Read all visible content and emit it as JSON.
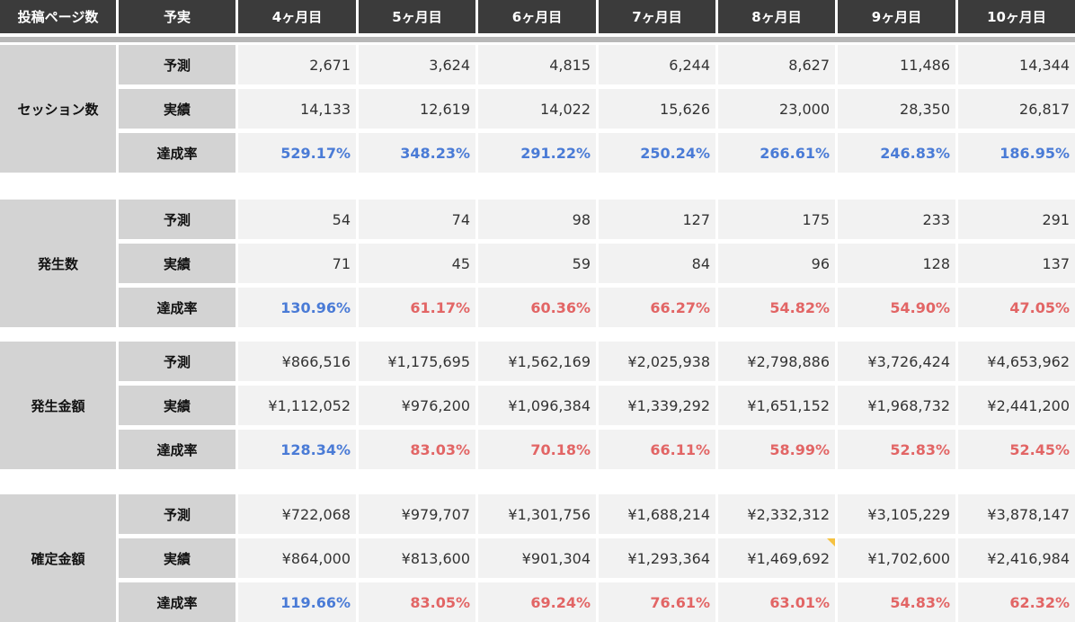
{
  "headers": [
    "投稿ページ数",
    "予実",
    "4ヶ月目",
    "5ヶ月目",
    "6ヶ月目",
    "7ヶ月目",
    "8ヶ月目",
    "9ヶ月目",
    "10ヶ月目"
  ],
  "groups": [
    {
      "label": "セッション数",
      "rows": [
        {
          "label": "予測",
          "values": [
            "2,671",
            "3,624",
            "4,815",
            "6,244",
            "8,627",
            "11,486",
            "14,344"
          ]
        },
        {
          "label": "実績",
          "values": [
            "14,133",
            "12,619",
            "14,022",
            "15,626",
            "23,000",
            "28,350",
            "26,817"
          ]
        },
        {
          "label": "達成率",
          "values": [
            "529.17%",
            "348.23%",
            "291.22%",
            "250.24%",
            "266.61%",
            "246.83%",
            "186.95%"
          ],
          "status": [
            "good",
            "good",
            "good",
            "good",
            "good",
            "good",
            "good"
          ]
        }
      ]
    },
    {
      "label": "発生数",
      "rows": [
        {
          "label": "予測",
          "values": [
            "54",
            "74",
            "98",
            "127",
            "175",
            "233",
            "291"
          ]
        },
        {
          "label": "実績",
          "values": [
            "71",
            "45",
            "59",
            "84",
            "96",
            "128",
            "137"
          ]
        },
        {
          "label": "達成率",
          "values": [
            "130.96%",
            "61.17%",
            "60.36%",
            "66.27%",
            "54.82%",
            "54.90%",
            "47.05%"
          ],
          "status": [
            "good",
            "bad",
            "bad",
            "bad",
            "bad",
            "bad",
            "bad"
          ]
        }
      ]
    },
    {
      "label": "発生金額",
      "rows": [
        {
          "label": "予測",
          "values": [
            "¥866,516",
            "¥1,175,695",
            "¥1,562,169",
            "¥2,025,938",
            "¥2,798,886",
            "¥3,726,424",
            "¥4,653,962"
          ]
        },
        {
          "label": "実績",
          "values": [
            "¥1,112,052",
            "¥976,200",
            "¥1,096,384",
            "¥1,339,292",
            "¥1,651,152",
            "¥1,968,732",
            "¥2,441,200"
          ]
        },
        {
          "label": "達成率",
          "values": [
            "128.34%",
            "83.03%",
            "70.18%",
            "66.11%",
            "58.99%",
            "52.83%",
            "52.45%"
          ],
          "status": [
            "good",
            "bad",
            "bad",
            "bad",
            "bad",
            "bad",
            "bad"
          ]
        }
      ]
    },
    {
      "label": "確定金額",
      "rows": [
        {
          "label": "予測",
          "values": [
            "¥722,068",
            "¥979,707",
            "¥1,301,756",
            "¥1,688,214",
            "¥2,332,312",
            "¥3,105,229",
            "¥3,878,147"
          ]
        },
        {
          "label": "実績",
          "values": [
            "¥864,000",
            "¥813,600",
            "¥901,304",
            "¥1,293,364",
            "¥1,469,692",
            "¥1,702,600",
            "¥2,416,984"
          ]
        },
        {
          "label": "達成率",
          "values": [
            "119.66%",
            "83.05%",
            "69.24%",
            "76.61%",
            "63.01%",
            "54.83%",
            "62.32%"
          ],
          "status": [
            "good",
            "bad",
            "bad",
            "bad",
            "bad",
            "bad",
            "bad"
          ]
        }
      ]
    }
  ],
  "colors": {
    "header_bg": "#3b3b3b",
    "label_bg": "#d3d3d3",
    "cell_bg": "#f2f2f2",
    "good": "#4a7bd6",
    "bad": "#e26565",
    "comment_flag": "#f5c242"
  }
}
